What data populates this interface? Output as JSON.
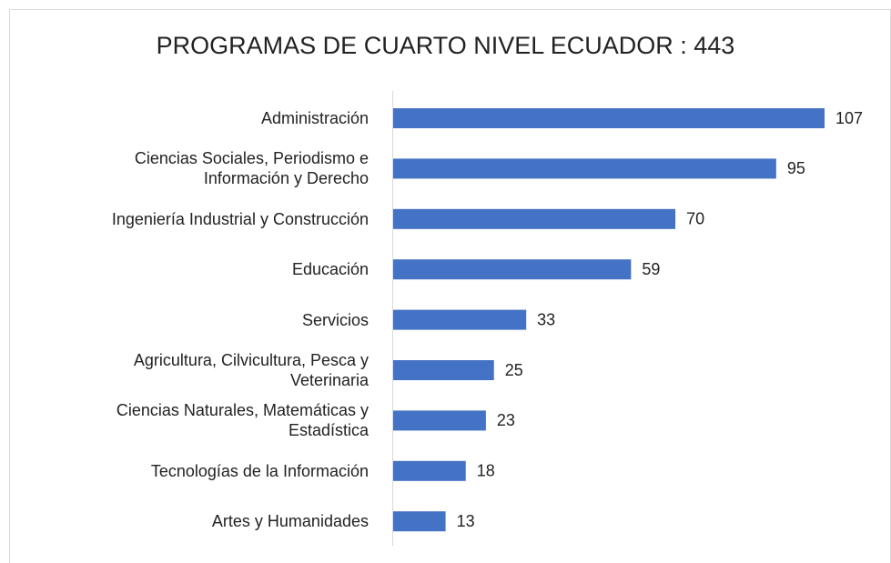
{
  "chart_data": {
    "type": "barh",
    "title": "PROGRAMAS DE CUARTO NIVEL ECUADOR : 443",
    "categories": [
      "Administración",
      "Ciencias Sociales, Periodismo e\nInformación  y Derecho",
      "Ingeniería Industrial y Construcción",
      "Educación",
      "Servicios",
      "Agricultura, Cilvicultura, Pesca y\nVeterinaria",
      "Ciencias Naturales, Matemáticas y\nEstadística",
      "Tecnologías de la Información",
      "Artes y Humanidades"
    ],
    "values": [
      107,
      95,
      70,
      59,
      33,
      25,
      23,
      18,
      13
    ],
    "color": "#4472c4"
  }
}
